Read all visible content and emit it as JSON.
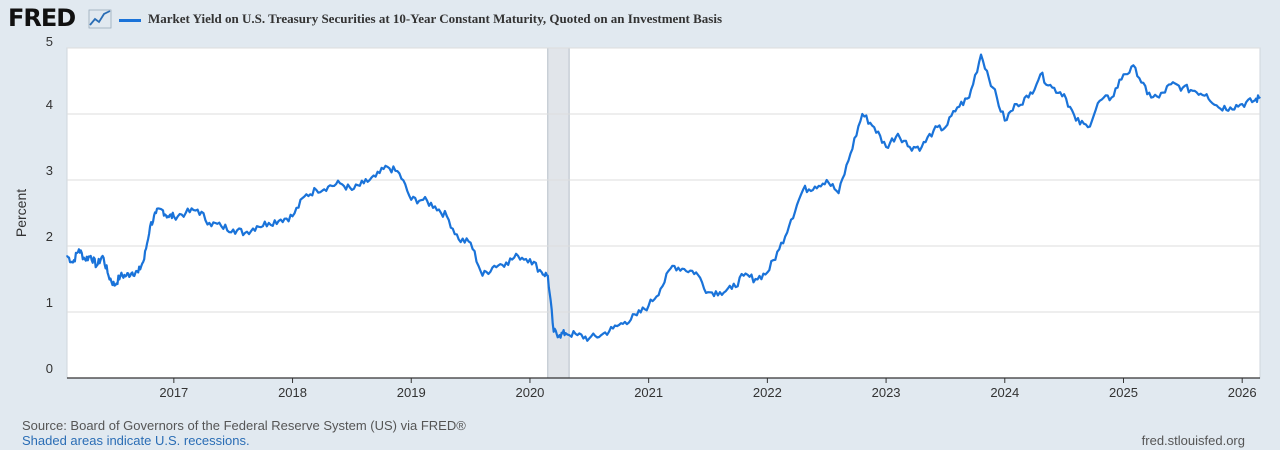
{
  "header": {
    "logo_text": "FRED",
    "logo_icon": "chart-line-icon"
  },
  "colors": {
    "background": "#e1e9f0",
    "plot_background": "#ffffff",
    "series_line": "#1a73d9",
    "recession_shade": "#e1e5ea",
    "grid": "#dddddd"
  },
  "chart_data": {
    "type": "line",
    "title": "",
    "xlabel": "",
    "ylabel": "Percent",
    "ylim": [
      0,
      5
    ],
    "xlim": [
      2016.1,
      2026.15
    ],
    "grid": true,
    "legend": "top-left",
    "y_ticks": [
      "0",
      "1",
      "2",
      "3",
      "4",
      "5"
    ],
    "x_ticks": [
      "2017",
      "2018",
      "2019",
      "2020",
      "2021",
      "2022",
      "2023",
      "2024",
      "2025",
      "2026"
    ],
    "recession": {
      "start": 2020.15,
      "end": 2020.33
    },
    "series": [
      {
        "name": "Market Yield on U.S. Treasury Securities at 10-Year Constant Maturity, Quoted on an Investment Basis",
        "x": [
          2016.1,
          2016.15,
          2016.2,
          2016.25,
          2016.3,
          2016.35,
          2016.4,
          2016.45,
          2016.5,
          2016.55,
          2016.6,
          2016.65,
          2016.7,
          2016.75,
          2016.8,
          2016.85,
          2016.9,
          2016.95,
          2017.0,
          2017.1,
          2017.2,
          2017.3,
          2017.4,
          2017.5,
          2017.6,
          2017.7,
          2017.8,
          2017.9,
          2018.0,
          2018.1,
          2018.2,
          2018.3,
          2018.4,
          2018.5,
          2018.6,
          2018.7,
          2018.8,
          2018.9,
          2019.0,
          2019.1,
          2019.2,
          2019.3,
          2019.4,
          2019.5,
          2019.6,
          2019.7,
          2019.8,
          2019.9,
          2020.0,
          2020.1,
          2020.15,
          2020.2,
          2020.25,
          2020.3,
          2020.4,
          2020.5,
          2020.6,
          2020.7,
          2020.8,
          2020.9,
          2021.0,
          2021.1,
          2021.2,
          2021.3,
          2021.4,
          2021.5,
          2021.6,
          2021.7,
          2021.8,
          2021.9,
          2022.0,
          2022.1,
          2022.2,
          2022.3,
          2022.4,
          2022.5,
          2022.6,
          2022.7,
          2022.8,
          2022.9,
          2023.0,
          2023.1,
          2023.2,
          2023.3,
          2023.4,
          2023.5,
          2023.6,
          2023.7,
          2023.8,
          2023.9,
          2024.0,
          2024.1,
          2024.2,
          2024.3,
          2024.4,
          2024.5,
          2024.6,
          2024.7,
          2024.8,
          2024.9,
          2025.0,
          2025.1,
          2025.2,
          2025.3,
          2025.4,
          2025.5,
          2025.6,
          2025.7,
          2025.8,
          2025.9,
          2026.0,
          2026.1,
          2026.15
        ],
        "y": [
          1.85,
          1.75,
          1.95,
          1.8,
          1.85,
          1.7,
          1.85,
          1.55,
          1.4,
          1.55,
          1.55,
          1.6,
          1.6,
          1.8,
          2.3,
          2.5,
          2.55,
          2.45,
          2.45,
          2.5,
          2.55,
          2.35,
          2.3,
          2.25,
          2.2,
          2.3,
          2.35,
          2.4,
          2.45,
          2.75,
          2.85,
          2.9,
          2.95,
          2.85,
          2.95,
          3.05,
          3.2,
          3.1,
          2.7,
          2.7,
          2.6,
          2.45,
          2.1,
          2.05,
          1.55,
          1.7,
          1.75,
          1.85,
          1.8,
          1.6,
          1.55,
          0.7,
          0.65,
          0.68,
          0.65,
          0.6,
          0.65,
          0.75,
          0.85,
          0.95,
          1.1,
          1.35,
          1.7,
          1.65,
          1.6,
          1.3,
          1.3,
          1.35,
          1.55,
          1.5,
          1.6,
          1.95,
          2.4,
          2.85,
          2.9,
          3.0,
          2.8,
          3.4,
          4.0,
          3.8,
          3.5,
          3.7,
          3.5,
          3.5,
          3.75,
          3.8,
          4.1,
          4.25,
          4.9,
          4.4,
          3.9,
          4.15,
          4.25,
          4.6,
          4.4,
          4.3,
          3.9,
          3.8,
          4.2,
          4.25,
          4.6,
          4.7,
          4.3,
          4.25,
          4.45,
          4.4,
          4.35,
          4.3,
          4.1,
          4.1,
          4.15,
          4.2,
          4.25
        ]
      }
    ]
  },
  "footer": {
    "source": "Source: Board of Governors of the Federal Reserve System (US) via FRED®",
    "recession_note": "Shaded areas indicate U.S. recessions.",
    "site": "fred.stlouisfed.org"
  }
}
